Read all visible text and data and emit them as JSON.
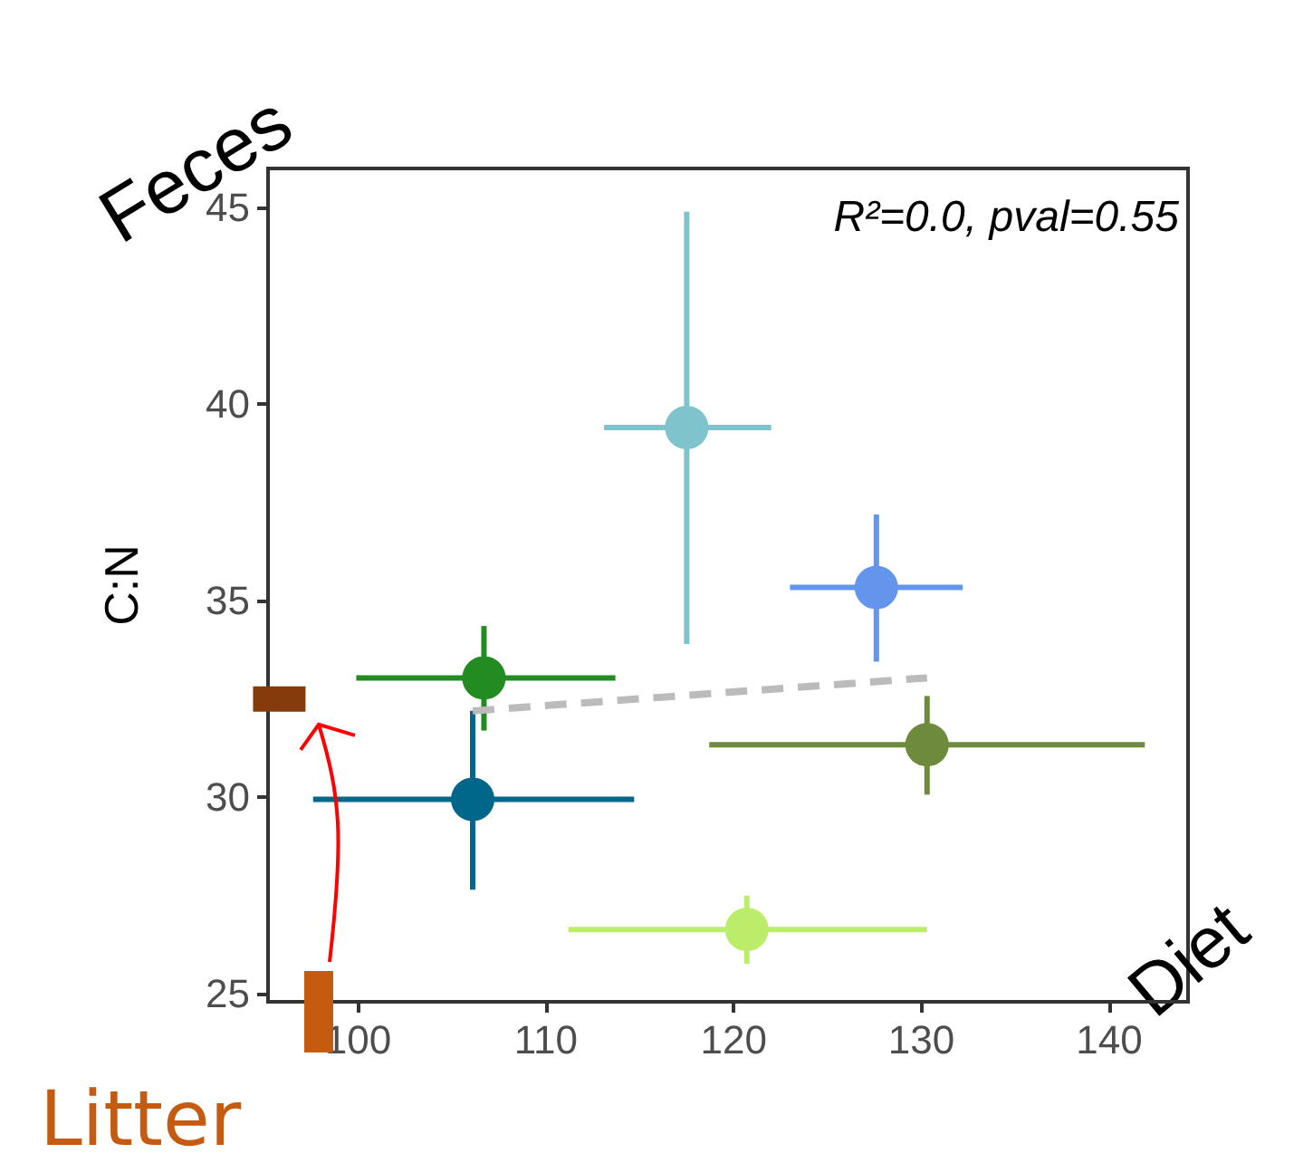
{
  "chart_data": {
    "type": "scatter",
    "xlabel": "Diet",
    "ylabel": "C:N",
    "annotations": [
      "R²=0.0, pval=0.55",
      "Feces"
    ],
    "xlim": [
      95.2,
      144.2
    ],
    "xticks": [
      100,
      110,
      120,
      130,
      140
    ],
    "ylim": [
      24.8,
      46
    ],
    "yticks": [
      25,
      30,
      35,
      40,
      45
    ],
    "grid": false,
    "marker": "circle",
    "series": [
      {
        "type": "scatter",
        "x": [
          106.1,
          106.7,
          117.5,
          127.6,
          130.3,
          120.7
        ],
        "values": [
          29.95,
          33.04,
          39.41,
          35.34,
          31.34,
          26.64
        ],
        "colors": [
          "#00678a",
          "#228b22",
          "#7fc4cc",
          "#6495ed",
          "#6e8b3d",
          "#bced6a"
        ],
        "errors": [
          [
            27.65,
            32.2
          ],
          [
            31.7,
            34.36
          ],
          [
            33.9,
            44.9
          ],
          [
            33.45,
            37.2
          ],
          [
            30.07,
            32.58
          ],
          [
            25.77,
            27.5
          ]
        ],
        "xerrors": [
          [
            97.6,
            114.7
          ],
          [
            99.9,
            113.7
          ],
          [
            113.1,
            122.0
          ],
          [
            123.0,
            132.2
          ],
          [
            118.7,
            141.9
          ],
          [
            111.2,
            130.3
          ]
        ]
      },
      {
        "type": "scatter",
        "x": [
          95.8
        ],
        "values": [
          32.5
        ],
        "color": "#843c0c",
        "marker": "square"
      },
      {
        "type": "line",
        "x": [
          106.1,
          130.3
        ],
        "values": [
          32.2,
          33.04
        ],
        "color": "#bbbbbb",
        "line_style": "dashed",
        "marker": "none"
      }
    ],
    "ref_lines": [
      {
        "axis": "x",
        "value": 97.9,
        "label": "Litter",
        "color": "#c55a11"
      }
    ]
  }
}
